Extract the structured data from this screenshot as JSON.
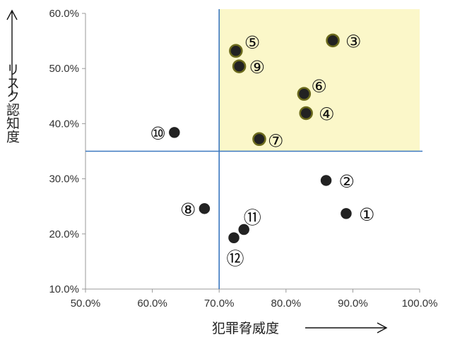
{
  "chart_data": {
    "type": "scatter",
    "xlabel": "犯罪脅威度",
    "ylabel": "リスク認知度",
    "xlim": [
      0.5,
      1.0
    ],
    "ylim": [
      0.1,
      0.6
    ],
    "x_ticks": [
      "50.0%",
      "60.0%",
      "70.0%",
      "80.0%",
      "90.0%",
      "100.0%"
    ],
    "y_ticks": [
      "10.0%",
      "20.0%",
      "30.0%",
      "40.0%",
      "50.0%",
      "60.0%"
    ],
    "grid": false,
    "reference_lines": {
      "x": 0.7,
      "y": 0.35
    },
    "highlight_quadrant": {
      "x_min": 0.7,
      "x_max": 1.0,
      "y_min": 0.35,
      "y_max": 0.6
    },
    "colors": {
      "highlight": "#fbf7c9",
      "reference_line": "#3b78c0",
      "point_fill": "#222222",
      "point_outline_in_highlight": "#6b6a1c",
      "axis": "#999999"
    },
    "points": [
      {
        "label": "①",
        "x": 0.89,
        "y": 0.237
      },
      {
        "label": "②",
        "x": 0.86,
        "y": 0.297
      },
      {
        "label": "③",
        "x": 0.87,
        "y": 0.551
      },
      {
        "label": "④",
        "x": 0.83,
        "y": 0.419
      },
      {
        "label": "⑤",
        "x": 0.725,
        "y": 0.532
      },
      {
        "label": "⑥",
        "x": 0.827,
        "y": 0.454
      },
      {
        "label": "⑦",
        "x": 0.76,
        "y": 0.372
      },
      {
        "label": "⑧",
        "x": 0.678,
        "y": 0.246
      },
      {
        "label": "⑨",
        "x": 0.73,
        "y": 0.504
      },
      {
        "label": "⑩",
        "x": 0.633,
        "y": 0.384
      },
      {
        "label": "⑪",
        "x": 0.737,
        "y": 0.208
      },
      {
        "label": "⑫",
        "x": 0.722,
        "y": 0.193
      }
    ]
  }
}
